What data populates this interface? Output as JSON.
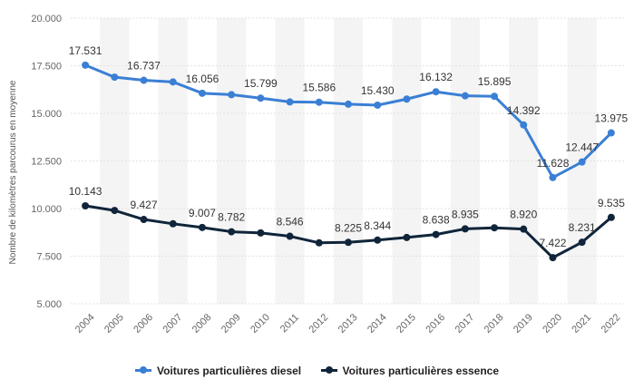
{
  "chart_data": {
    "type": "line",
    "title": "",
    "xlabel": "",
    "ylabel": "Nombre de kilomètres parcourus en moyenne",
    "x": [
      "2004",
      "2005",
      "2006",
      "2007",
      "2008",
      "2009",
      "2010",
      "2011",
      "2012",
      "2013",
      "2014",
      "2015",
      "2016",
      "2017",
      "2018",
      "2019",
      "2020",
      "2021",
      "2022"
    ],
    "ylim": [
      5000,
      20000
    ],
    "yticks": [
      5000,
      7500,
      10000,
      12500,
      15000,
      17500,
      20000
    ],
    "ytick_labels": [
      "5.000",
      "7.500",
      "10.000",
      "12.500",
      "15.000",
      "17.500",
      "20.000"
    ],
    "grid": true,
    "legend_position": "bottom",
    "series": [
      {
        "name": "Voitures particulières diesel",
        "color": "#3a7fd5",
        "values": [
          17531,
          16900,
          16737,
          16650,
          16056,
          15980,
          15799,
          15600,
          15586,
          15480,
          15430,
          15750,
          16132,
          15920,
          15895,
          14392,
          11628,
          12447,
          13975
        ],
        "labels": [
          "17.531",
          "",
          "16.737",
          "",
          "16.056",
          "",
          "15.799",
          "",
          "15.586",
          "",
          "15.430",
          "",
          "16.132",
          "",
          "15.895",
          "14.392",
          "11.628",
          "12.447",
          "13.975"
        ]
      },
      {
        "name": "Voitures particulières essence",
        "color": "#10253a",
        "values": [
          10143,
          9900,
          9427,
          9200,
          9007,
          8782,
          8720,
          8546,
          8200,
          8225,
          8344,
          8480,
          8638,
          8935,
          8990,
          8920,
          7422,
          8231,
          9535
        ],
        "labels": [
          "10.143",
          "",
          "9.427",
          "",
          "9.007",
          "8.782",
          "",
          "8.546",
          "",
          "8.225",
          "8.344",
          "",
          "8.638",
          "8.935",
          "",
          "8.920",
          "7.422",
          "8.231",
          "9.535"
        ]
      }
    ]
  }
}
